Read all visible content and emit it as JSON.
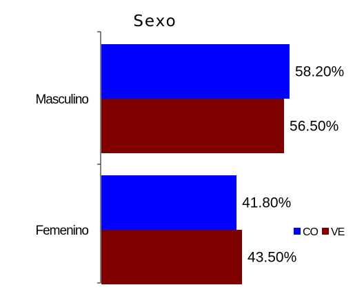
{
  "chart_data": {
    "type": "bar",
    "orientation": "horizontal",
    "title": "Sexo",
    "categories": [
      "Masculino",
      "Femenino"
    ],
    "series": [
      {
        "name": "CO",
        "color": "#0000ff",
        "values": [
          58.2,
          41.8
        ],
        "labels": [
          "58.20%",
          "41.80%"
        ]
      },
      {
        "name": "VE",
        "color": "#800000",
        "values": [
          56.5,
          43.5
        ],
        "labels": [
          "56.50%",
          "43.50%"
        ]
      }
    ],
    "xlim": [
      0,
      62
    ],
    "xaxis_visible": false,
    "grid": false,
    "legend": "right"
  }
}
